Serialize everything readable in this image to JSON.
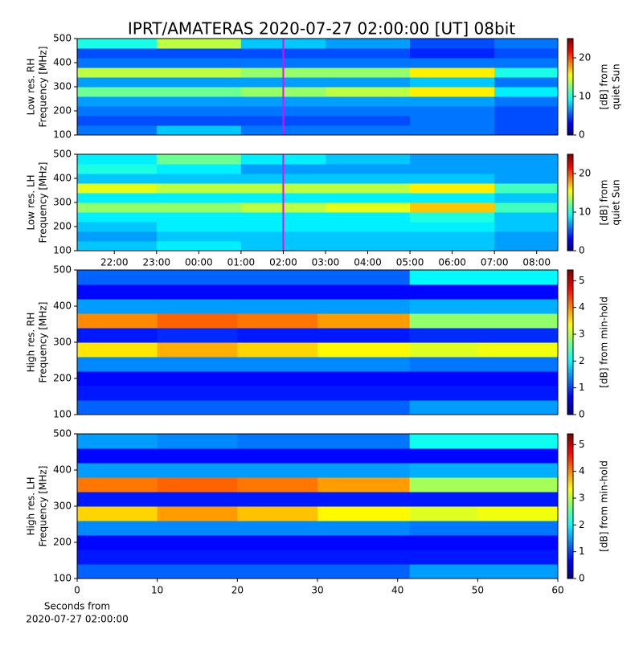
{
  "chart_data": [
    {
      "type": "heatmap",
      "title": "IPRT/AMATERAS 2020-07-27 02:00:00 [UT]   08bit",
      "ylabel": [
        "Low res. RH",
        "Frequency [MHz]"
      ],
      "xlim": [
        21.12,
        32.5
      ],
      "ylim": [
        100,
        500
      ],
      "yticks": [
        100,
        200,
        300,
        400,
        500
      ],
      "x_edges": [
        21.12,
        23,
        25,
        27,
        29,
        31,
        32.5
      ],
      "y_edges": [
        100,
        140,
        180,
        220,
        260,
        300,
        340,
        380,
        420,
        460,
        500
      ],
      "z": [
        [
          6,
          8,
          6,
          6,
          6,
          5
        ],
        [
          5,
          5,
          5,
          5,
          6,
          5
        ],
        [
          6,
          6,
          6,
          6,
          6,
          5
        ],
        [
          7,
          7,
          7,
          7,
          7,
          6
        ],
        [
          12,
          12,
          13,
          14,
          16,
          9
        ],
        [
          7,
          7,
          7,
          7,
          8,
          6
        ],
        [
          14,
          14,
          13,
          13,
          16,
          10
        ],
        [
          6,
          6,
          6,
          6,
          6,
          6
        ],
        [
          5,
          5,
          5,
          5,
          4,
          5
        ],
        [
          10,
          14,
          8,
          7,
          5,
          6
        ]
      ],
      "colormap": "jet",
      "clim": [
        0,
        25
      ],
      "cticks": [
        0,
        10,
        20
      ],
      "clabel": [
        "[dB] from",
        "quiet Sun"
      ],
      "vline": {
        "x": 26,
        "color": "#ff00ff"
      }
    },
    {
      "type": "heatmap",
      "ylabel": [
        "Low res. LH",
        "Frequency [MHz]"
      ],
      "xlim": [
        21.12,
        32.5
      ],
      "ylim": [
        100,
        500
      ],
      "yticks": [
        100,
        200,
        300,
        400,
        500
      ],
      "xticks": [
        {
          "value": 22,
          "label": "22:00"
        },
        {
          "value": 23,
          "label": "23:00"
        },
        {
          "value": 24,
          "label": "00:00"
        },
        {
          "value": 25,
          "label": "01:00"
        },
        {
          "value": 26,
          "label": "02:00"
        },
        {
          "value": 27,
          "label": "03:00"
        },
        {
          "value": 28,
          "label": "04:00"
        },
        {
          "value": 29,
          "label": "05:00"
        },
        {
          "value": 30,
          "label": "06:00"
        },
        {
          "value": 31,
          "label": "07:00"
        },
        {
          "value": 32,
          "label": "08:00"
        }
      ],
      "x_edges": [
        21.12,
        23,
        25,
        27,
        29,
        31,
        32.5
      ],
      "y_edges": [
        100,
        140,
        180,
        220,
        260,
        300,
        340,
        380,
        420,
        460,
        500
      ],
      "z": [
        [
          8,
          9,
          8,
          8,
          8,
          7
        ],
        [
          7,
          8,
          8,
          8,
          8,
          7
        ],
        [
          8,
          9,
          9,
          9,
          9,
          8
        ],
        [
          9,
          9,
          9,
          9,
          10,
          8
        ],
        [
          13,
          13,
          14,
          15,
          17,
          11
        ],
        [
          9,
          9,
          9,
          9,
          9,
          8
        ],
        [
          15,
          14,
          14,
          14,
          16,
          11
        ],
        [
          8,
          8,
          8,
          8,
          8,
          7
        ],
        [
          10,
          9,
          7,
          7,
          7,
          7
        ],
        [
          9,
          12,
          9,
          8,
          7,
          7
        ]
      ],
      "colormap": "jet",
      "clim": [
        0,
        25
      ],
      "cticks": [
        0,
        10,
        20
      ],
      "clabel": [
        "[dB] from",
        "quiet Sun"
      ],
      "vline": {
        "x": 26,
        "color": "#ff00ff"
      }
    },
    {
      "type": "heatmap",
      "ylabel": [
        "High res. RH",
        "Frequency [MHz]"
      ],
      "xlim": [
        0,
        60
      ],
      "ylim": [
        100,
        500
      ],
      "yticks": [
        100,
        200,
        300,
        400,
        500
      ],
      "x_edges": [
        0,
        10,
        20,
        30,
        41.5,
        50,
        60
      ],
      "y_edges": [
        100,
        140,
        180,
        220,
        260,
        300,
        340,
        380,
        420,
        460,
        500
      ],
      "z": [
        [
          1.2,
          1.2,
          1.2,
          1.2,
          1.5,
          1.5
        ],
        [
          0.8,
          0.8,
          0.8,
          0.8,
          0.8,
          0.8
        ],
        [
          0.7,
          0.7,
          0.7,
          0.7,
          0.7,
          0.7
        ],
        [
          1.4,
          1.4,
          1.4,
          1.4,
          1.3,
          1.3
        ],
        [
          3.5,
          3.8,
          3.6,
          3.4,
          3.2,
          3.3
        ],
        [
          0.8,
          0.9,
          0.8,
          0.8,
          0.9,
          0.9
        ],
        [
          4,
          4.2,
          4.1,
          3.9,
          2.8,
          2.8
        ],
        [
          1.5,
          1.5,
          1.5,
          1.5,
          1.6,
          1.6
        ],
        [
          0.7,
          0.7,
          0.7,
          0.7,
          0.7,
          0.7
        ],
        [
          1.2,
          1.2,
          1.2,
          1.2,
          2,
          2
        ]
      ],
      "colormap": "jet",
      "clim": [
        0,
        5.4
      ],
      "cticks": [
        0,
        1,
        2,
        3,
        4,
        5
      ],
      "clabel": [
        "[dB] from min-hold"
      ]
    },
    {
      "type": "heatmap",
      "ylabel": [
        "High res. LH",
        "Frequency [MHz]"
      ],
      "xlim": [
        0,
        60
      ],
      "ylim": [
        100,
        500
      ],
      "yticks": [
        100,
        200,
        300,
        400,
        500
      ],
      "xticks": [
        0,
        10,
        20,
        30,
        40,
        50,
        60
      ],
      "xlabel": [
        "Seconds from",
        "2020-07-27 02:00:00"
      ],
      "x_edges": [
        0,
        10,
        20,
        30,
        41.5,
        50,
        60
      ],
      "y_edges": [
        100,
        140,
        180,
        220,
        260,
        300,
        340,
        380,
        420,
        460,
        500
      ],
      "z": [
        [
          1.2,
          1.2,
          1.2,
          1.2,
          1.5,
          1.5
        ],
        [
          0.8,
          0.8,
          0.8,
          0.8,
          0.8,
          0.8
        ],
        [
          0.7,
          0.7,
          0.7,
          0.7,
          0.7,
          0.7
        ],
        [
          1.4,
          1.4,
          1.4,
          1.4,
          1.3,
          1.3
        ],
        [
          3.6,
          3.9,
          3.7,
          3.4,
          3.2,
          3.3
        ],
        [
          0.8,
          0.8,
          0.8,
          0.8,
          0.8,
          0.8
        ],
        [
          4.1,
          4.2,
          4.1,
          3.9,
          2.9,
          2.9
        ],
        [
          1.5,
          1.5,
          1.5,
          1.5,
          1.6,
          1.6
        ],
        [
          0.7,
          0.7,
          0.7,
          0.7,
          0.7,
          0.7
        ],
        [
          1.5,
          1.4,
          1.3,
          1.3,
          2.1,
          2.1
        ]
      ],
      "colormap": "jet",
      "clim": [
        0,
        5.4
      ],
      "cticks": [
        0,
        1,
        2,
        3,
        4,
        5
      ],
      "clabel": [
        "[dB] from min-hold"
      ]
    }
  ]
}
